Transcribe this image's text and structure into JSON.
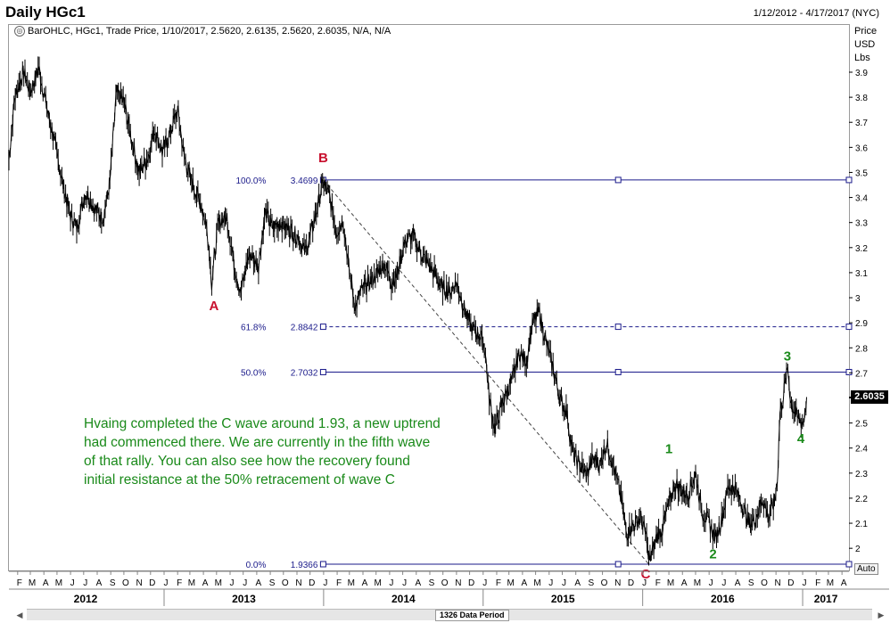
{
  "header": {
    "title": "Daily HGc1",
    "date_range": "1/12/2012 - 4/17/2017 (NYC)",
    "series_info": "BarOHLC, HGc1, Trade Price, 1/10/2017, 2.5620, 2.6135, 2.5620, 2.6035, N/A, N/A"
  },
  "price_axis": {
    "header_lines": [
      "Price",
      "USD",
      "Lbs"
    ],
    "current_price": "2.6035",
    "auto_label": "Auto"
  },
  "annotation_text": "Hvaing completed the C wave around 1.93, a new uptrend had commenced there. We are currently in the fifth wave of that rally. You can also see how the recovery found initial resistance at the 50% retracement of wave C",
  "scrollbar": {
    "label": "1326 Data Period",
    "left_arrow": "◀",
    "right_arrow": "▶"
  },
  "colors": {
    "fib_line": "#1a1a8a",
    "wave_abc": "#c8102e",
    "wave_123": "#1a8a1a",
    "price_bars": "#000000",
    "trend_line": "#444444"
  },
  "chart_data": {
    "type": "line",
    "title": "Daily HGc1",
    "ylim": [
      1.93,
      3.97
    ],
    "y_ticks": [
      2,
      2.1,
      2.2,
      2.3,
      2.4,
      2.5,
      2.6,
      2.7,
      2.8,
      2.9,
      3,
      3.1,
      3.2,
      3.3,
      3.4,
      3.5,
      3.6,
      3.7,
      3.8,
      3.9
    ],
    "y_tick_labels": [
      "2",
      "2.1",
      "2.2",
      "2.3",
      "2.4",
      "2.5",
      "2.6",
      "2.7",
      "2.8",
      "2.9",
      "3",
      "3.1",
      "3.2",
      "3.3",
      "3.4",
      "3.5",
      "3.6",
      "3.7",
      "3.8",
      "3.9"
    ],
    "x_range": [
      "2012-01-12",
      "2017-04-17"
    ],
    "month_letters": [
      "F",
      "M",
      "A",
      "M",
      "J",
      "J",
      "A",
      "S",
      "O",
      "N",
      "D",
      "J",
      "F",
      "M",
      "A",
      "M",
      "J",
      "J",
      "A",
      "S",
      "O",
      "N",
      "D",
      "J",
      "F",
      "M",
      "A",
      "M",
      "J",
      "J",
      "A",
      "S",
      "O",
      "N",
      "D",
      "J",
      "F",
      "M",
      "A",
      "M",
      "J",
      "J",
      "A",
      "S",
      "O",
      "N",
      "D",
      "J",
      "F",
      "M",
      "A",
      "M",
      "J",
      "J",
      "A",
      "S",
      "O",
      "N",
      "D",
      "J",
      "F",
      "M",
      "A",
      "M",
      "J",
      "J",
      "A",
      "S",
      "O",
      "N",
      "D",
      "J",
      "F",
      "M",
      "A"
    ],
    "year_labels": [
      "2012",
      "2013",
      "2014",
      "2015",
      "2016",
      "2017"
    ],
    "year_starts": [
      "2012-01-01",
      "2013-01-01",
      "2014-01-01",
      "2015-01-01",
      "2016-01-01",
      "2017-01-01"
    ],
    "series": [
      {
        "values": [
          [
            "2012-01-12",
            3.55
          ],
          [
            "2012-01-25",
            3.8
          ],
          [
            "2012-02-15",
            3.9
          ],
          [
            "2012-03-01",
            3.82
          ],
          [
            "2012-03-20",
            3.92
          ],
          [
            "2012-04-05",
            3.78
          ],
          [
            "2012-04-25",
            3.62
          ],
          [
            "2012-05-15",
            3.45
          ],
          [
            "2012-06-01",
            3.33
          ],
          [
            "2012-06-15",
            3.28
          ],
          [
            "2012-07-05",
            3.42
          ],
          [
            "2012-07-25",
            3.36
          ],
          [
            "2012-08-15",
            3.32
          ],
          [
            "2012-08-30",
            3.46
          ],
          [
            "2012-09-14",
            3.82
          ],
          [
            "2012-10-01",
            3.78
          ],
          [
            "2012-10-20",
            3.62
          ],
          [
            "2012-11-05",
            3.5
          ],
          [
            "2012-11-25",
            3.56
          ],
          [
            "2012-12-10",
            3.67
          ],
          [
            "2012-12-28",
            3.58
          ],
          [
            "2013-01-15",
            3.66
          ],
          [
            "2013-02-01",
            3.75
          ],
          [
            "2013-02-15",
            3.57
          ],
          [
            "2013-03-05",
            3.46
          ],
          [
            "2013-03-25",
            3.38
          ],
          [
            "2013-04-10",
            3.27
          ],
          [
            "2013-04-20",
            3.06
          ],
          [
            "2013-05-05",
            3.3
          ],
          [
            "2013-05-25",
            3.32
          ],
          [
            "2013-06-10",
            3.14
          ],
          [
            "2013-06-25",
            3.02
          ],
          [
            "2013-07-15",
            3.18
          ],
          [
            "2013-08-05",
            3.13
          ],
          [
            "2013-08-20",
            3.34
          ],
          [
            "2013-09-05",
            3.28
          ],
          [
            "2013-09-25",
            3.3
          ],
          [
            "2013-10-15",
            3.27
          ],
          [
            "2013-11-05",
            3.24
          ],
          [
            "2013-11-20",
            3.18
          ],
          [
            "2013-12-10",
            3.3
          ],
          [
            "2013-12-31",
            3.46
          ],
          [
            "2014-01-15",
            3.4
          ],
          [
            "2014-01-30",
            3.26
          ],
          [
            "2014-02-15",
            3.31
          ],
          [
            "2014-03-01",
            3.1
          ],
          [
            "2014-03-15",
            2.96
          ],
          [
            "2014-03-25",
            3.02
          ],
          [
            "2014-04-15",
            3.06
          ],
          [
            "2014-05-05",
            3.1
          ],
          [
            "2014-05-20",
            3.14
          ],
          [
            "2014-06-05",
            3.06
          ],
          [
            "2014-06-20",
            3.1
          ],
          [
            "2014-07-05",
            3.22
          ],
          [
            "2014-07-25",
            3.25
          ],
          [
            "2014-08-10",
            3.18
          ],
          [
            "2014-08-25",
            3.14
          ],
          [
            "2014-09-10",
            3.1
          ],
          [
            "2014-09-25",
            3.05
          ],
          [
            "2014-10-15",
            3.02
          ],
          [
            "2014-11-01",
            3.06
          ],
          [
            "2014-11-20",
            2.95
          ],
          [
            "2014-12-05",
            2.88
          ],
          [
            "2014-12-25",
            2.85
          ],
          [
            "2015-01-05",
            2.8
          ],
          [
            "2015-01-15",
            2.6
          ],
          [
            "2015-01-28",
            2.47
          ],
          [
            "2015-02-10",
            2.56
          ],
          [
            "2015-02-25",
            2.63
          ],
          [
            "2015-03-10",
            2.68
          ],
          [
            "2015-03-25",
            2.78
          ],
          [
            "2015-04-10",
            2.75
          ],
          [
            "2015-04-25",
            2.9
          ],
          [
            "2015-05-10",
            2.94
          ],
          [
            "2015-05-25",
            2.82
          ],
          [
            "2015-06-10",
            2.72
          ],
          [
            "2015-06-25",
            2.6
          ],
          [
            "2015-07-10",
            2.55
          ],
          [
            "2015-07-25",
            2.38
          ],
          [
            "2015-08-10",
            2.33
          ],
          [
            "2015-08-25",
            2.29
          ],
          [
            "2015-09-10",
            2.36
          ],
          [
            "2015-09-25",
            2.33
          ],
          [
            "2015-10-10",
            2.42
          ],
          [
            "2015-10-25",
            2.34
          ],
          [
            "2015-11-10",
            2.22
          ],
          [
            "2015-11-25",
            2.06
          ],
          [
            "2015-12-10",
            2.09
          ],
          [
            "2015-12-28",
            2.12
          ],
          [
            "2016-01-10",
            2.04
          ],
          [
            "2016-01-15",
            1.94
          ],
          [
            "2016-02-01",
            2.04
          ],
          [
            "2016-02-15",
            2.08
          ],
          [
            "2016-03-01",
            2.18
          ],
          [
            "2016-03-15",
            2.26
          ],
          [
            "2016-03-31",
            2.23
          ],
          [
            "2016-04-15",
            2.22
          ],
          [
            "2016-05-01",
            2.3
          ],
          [
            "2016-05-15",
            2.15
          ],
          [
            "2016-06-01",
            2.1
          ],
          [
            "2016-06-15",
            2.04
          ],
          [
            "2016-07-01",
            2.12
          ],
          [
            "2016-07-15",
            2.25
          ],
          [
            "2016-08-01",
            2.23
          ],
          [
            "2016-08-15",
            2.18
          ],
          [
            "2016-09-01",
            2.09
          ],
          [
            "2016-09-15",
            2.12
          ],
          [
            "2016-10-01",
            2.2
          ],
          [
            "2016-10-15",
            2.12
          ],
          [
            "2016-10-30",
            2.2
          ],
          [
            "2016-11-05",
            2.3
          ],
          [
            "2016-11-10",
            2.54
          ],
          [
            "2016-11-17",
            2.6
          ],
          [
            "2016-11-28",
            2.72
          ],
          [
            "2016-12-05",
            2.58
          ],
          [
            "2016-12-20",
            2.52
          ],
          [
            "2017-01-03",
            2.5
          ],
          [
            "2017-01-10",
            2.6035
          ]
        ]
      }
    ],
    "fib_levels": [
      {
        "pct": "100.0%",
        "price_label": "3.4699",
        "value": 3.4699,
        "style": "solid"
      },
      {
        "pct": "61.8%",
        "price_label": "2.8842",
        "value": 2.8842,
        "style": "dashed"
      },
      {
        "pct": "50.0%",
        "price_label": "2.7032",
        "value": 2.7032,
        "style": "solid"
      },
      {
        "pct": "0.0%",
        "price_label": "1.9366",
        "value": 1.9366,
        "style": "solid"
      }
    ],
    "trend_line": {
      "from": [
        "2013-12-31",
        3.4699
      ],
      "to": [
        "2016-01-15",
        1.9366
      ]
    },
    "wave_labels": [
      {
        "text": "A",
        "x": "2013-04-25",
        "y": 2.95,
        "group": "abc"
      },
      {
        "text": "B",
        "x": "2013-12-31",
        "y": 3.54,
        "group": "abc"
      },
      {
        "text": "C",
        "x": "2016-01-08",
        "y": 1.88,
        "group": "abc"
      },
      {
        "text": "1",
        "x": "2016-03-01",
        "y": 2.38,
        "group": "123"
      },
      {
        "text": "2",
        "x": "2016-06-10",
        "y": 1.96,
        "group": "123"
      },
      {
        "text": "3",
        "x": "2016-11-27",
        "y": 2.75,
        "group": "123"
      },
      {
        "text": "4",
        "x": "2016-12-28",
        "y": 2.42,
        "group": "123"
      }
    ]
  }
}
